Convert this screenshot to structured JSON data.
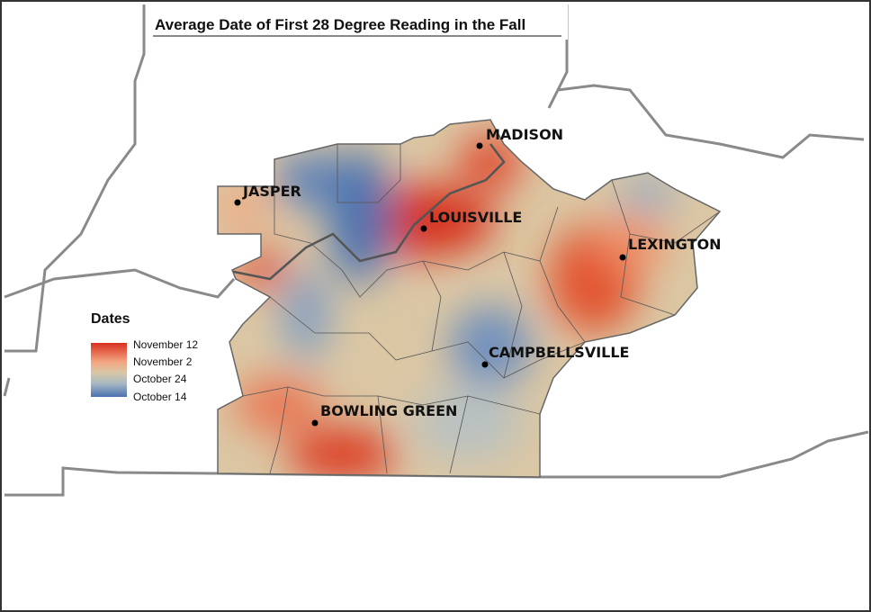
{
  "title": "Average Date of First 28 Degree Reading in the Fall",
  "legend": {
    "title": "Dates",
    "labels": [
      "November 12",
      "November 2",
      "October 24",
      "October 14"
    ]
  },
  "cities": [
    "MADISON",
    "JASPER",
    "LOUISVILLE",
    "LEXINGTON",
    "CAMPBELLSVILLE",
    "BOWLING GREEN"
  ]
}
